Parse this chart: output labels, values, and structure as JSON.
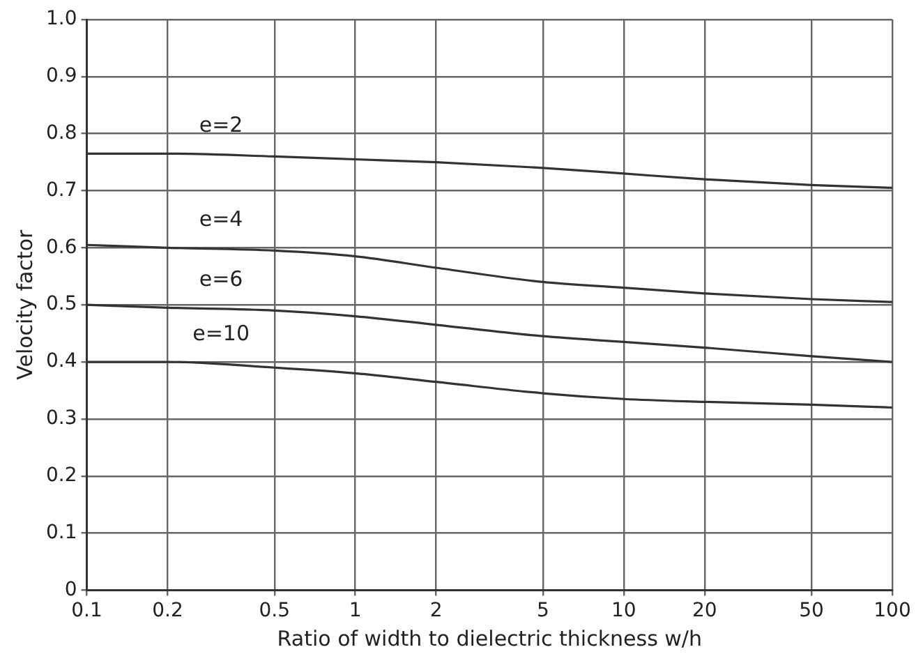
{
  "chart_data": {
    "type": "line",
    "xlabel": "Ratio of width to dielectric thickness w/h",
    "ylabel": "Velocity factor",
    "x": [
      0.1,
      0.2,
      0.5,
      1,
      2,
      5,
      10,
      20,
      50,
      100
    ],
    "series": [
      {
        "name": "e=2",
        "color": "#333333",
        "values": [
          0.765,
          0.765,
          0.76,
          0.755,
          0.75,
          0.74,
          0.73,
          0.72,
          0.71,
          0.705
        ]
      },
      {
        "name": "e=4",
        "color": "#333333",
        "values": [
          0.605,
          0.6,
          0.595,
          0.585,
          0.565,
          0.54,
          0.53,
          0.52,
          0.51,
          0.505
        ]
      },
      {
        "name": "e=6",
        "color": "#333333",
        "values": [
          0.5,
          0.495,
          0.49,
          0.48,
          0.465,
          0.445,
          0.435,
          0.425,
          0.41,
          0.4
        ]
      },
      {
        "name": "e=10",
        "color": "#333333",
        "values": [
          0.4,
          0.4,
          0.39,
          0.38,
          0.365,
          0.345,
          0.335,
          0.33,
          0.325,
          0.32
        ]
      }
    ],
    "log": "x",
    "xlim": [
      0.1,
      100
    ],
    "xticks": [
      0.1,
      0.2,
      0.5,
      1,
      2,
      5,
      10,
      20,
      50,
      100
    ],
    "ylim": [
      0,
      1
    ],
    "yticks": [
      0,
      0.1,
      0.2,
      0.3,
      0.4,
      0.5,
      0.6,
      0.7,
      0.8,
      0.9,
      {
        "value": 1,
        "label": "1.0"
      }
    ],
    "grid": true,
    "legend": false,
    "marker": "none",
    "line_style": "solid"
  }
}
